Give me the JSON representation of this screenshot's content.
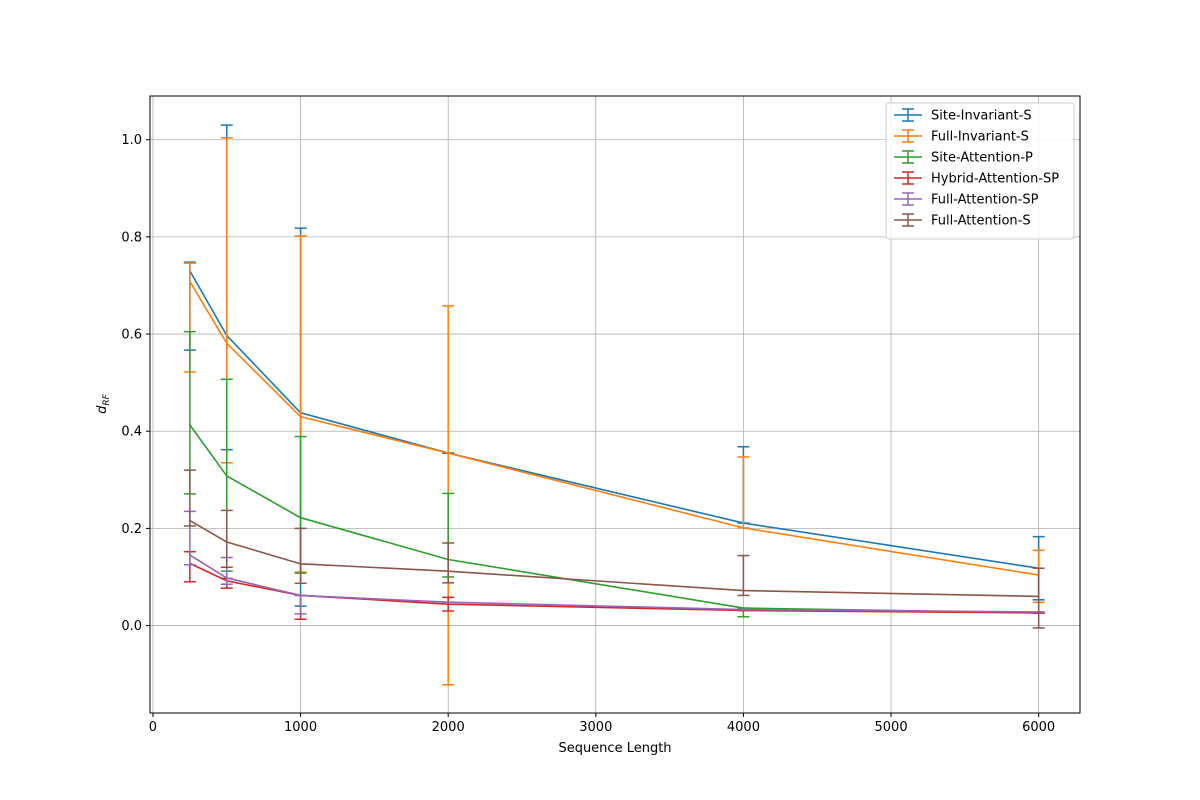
{
  "chart_data": {
    "type": "line",
    "xlabel": "Sequence Length",
    "ylabel_main": "d",
    "ylabel_sub": "RF",
    "xlim": [
      -20,
      6280
    ],
    "ylim": [
      -0.18,
      1.09
    ],
    "xticks": [
      0,
      1000,
      2000,
      3000,
      4000,
      5000,
      6000
    ],
    "yticks": [
      0.0,
      0.2,
      0.4,
      0.6,
      0.8,
      1.0
    ],
    "xtick_labels": [
      "0",
      "1000",
      "2000",
      "3000",
      "4000",
      "5000",
      "6000"
    ],
    "ytick_labels": [
      "0.0",
      "0.2",
      "0.4",
      "0.6",
      "0.8",
      "1.0"
    ],
    "grid": true,
    "legend_position": "top-right",
    "series": [
      {
        "name": "Site-Invariant-S",
        "color": "#1f77b4",
        "x": [
          250,
          500,
          1000,
          2000,
          4000,
          6000
        ],
        "y": [
          0.73,
          0.597,
          0.438,
          0.355,
          0.211,
          0.118
        ],
        "err_low": [
          0.567,
          0.362,
          0.04,
          0.355,
          0.211,
          0.053
        ],
        "err_high": [
          0.748,
          1.03,
          0.818,
          0.355,
          0.368,
          0.183
        ]
      },
      {
        "name": "Full-Invariant-S",
        "color": "#ff7f0e",
        "x": [
          250,
          500,
          1000,
          2000,
          4000,
          6000
        ],
        "y": [
          0.708,
          0.581,
          0.43,
          0.355,
          0.201,
          0.104
        ],
        "err_low": [
          0.522,
          0.335,
          0.11,
          -0.122,
          0.201,
          0.048
        ],
        "err_high": [
          0.746,
          1.004,
          0.802,
          0.658,
          0.347,
          0.155
        ]
      },
      {
        "name": "Site-Attention-P",
        "color": "#2ca02c",
        "x": [
          250,
          500,
          1000,
          2000,
          4000,
          6000
        ],
        "y": [
          0.413,
          0.308,
          0.222,
          0.136,
          0.036,
          0.026
        ],
        "err_low": [
          0.271,
          0.112,
          0.108,
          0.1,
          0.018,
          0.026
        ],
        "err_high": [
          0.605,
          0.507,
          0.389,
          0.272,
          0.036,
          0.026
        ]
      },
      {
        "name": "Hybrid-Attention-SP",
        "color": "#d62728",
        "x": [
          250,
          500,
          1000,
          2000,
          4000,
          6000
        ],
        "y": [
          0.128,
          0.092,
          0.062,
          0.044,
          0.031,
          0.026
        ],
        "err_low": [
          0.09,
          0.077,
          0.013,
          0.03,
          0.031,
          0.026
        ],
        "err_high": [
          0.152,
          0.097,
          0.062,
          0.058,
          0.031,
          0.026
        ]
      },
      {
        "name": "Full-Attention-SP",
        "color": "#9467bd",
        "x": [
          250,
          500,
          1000,
          2000,
          4000,
          6000
        ],
        "y": [
          0.145,
          0.098,
          0.062,
          0.048,
          0.033,
          0.028
        ],
        "err_low": [
          0.125,
          0.085,
          0.024,
          0.048,
          0.033,
          0.028
        ],
        "err_high": [
          0.235,
          0.14,
          0.062,
          0.048,
          0.033,
          0.028
        ]
      },
      {
        "name": "Full-Attention-S",
        "color": "#8c564b",
        "x": [
          250,
          500,
          1000,
          2000,
          4000,
          6000
        ],
        "y": [
          0.216,
          0.172,
          0.127,
          0.112,
          0.072,
          0.06
        ],
        "err_low": [
          0.205,
          0.12,
          0.087,
          0.088,
          0.062,
          -0.005
        ],
        "err_high": [
          0.32,
          0.237,
          0.2,
          0.17,
          0.144,
          0.118
        ]
      }
    ]
  }
}
